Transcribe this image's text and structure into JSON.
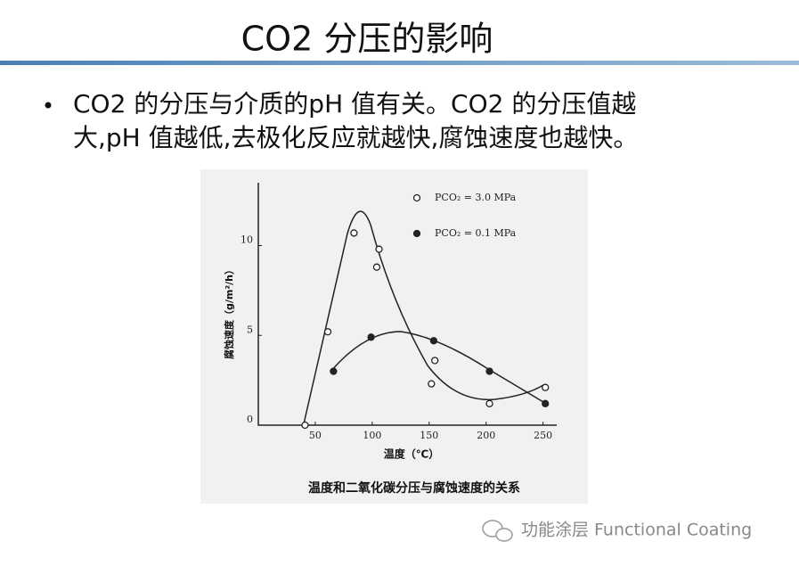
{
  "title": "CO2 分压的影响",
  "bullet": {
    "line1": "CO2 的分压与介质的pH 值有关。CO2 的分压值越",
    "line2": "大,pH 值越低,去极化反应就越快,腐蚀速度也越快。"
  },
  "watermark": "功能涂层 Functional Coating",
  "chart_data": {
    "type": "scatter",
    "caption": "温度和二氧化碳分压与腐蚀速度的关系",
    "x_label": "温度（℃）",
    "y_label": "腐蚀速度（g/m²/h）",
    "xlim": [
      0,
      262
    ],
    "ylim": [
      0,
      13.5
    ],
    "xticks": [
      50,
      100,
      150,
      200,
      250
    ],
    "yticks": [
      0,
      5,
      10
    ],
    "series": [
      {
        "name": "PCO₂ = 3.0 MPa",
        "color": "#222222",
        "marker": "open",
        "x": [
          41,
          61,
          84,
          104,
          106,
          152,
          155,
          203,
          252
        ],
        "values": [
          0,
          5.2,
          10.7,
          8.8,
          9.8,
          2.3,
          3.6,
          1.2,
          2.1
        ]
      },
      {
        "name": "PCO₂ = 0.1 MPa",
        "color": "#222222",
        "marker": "filled",
        "x": [
          66,
          99,
          154,
          203,
          252
        ],
        "values": [
          3.0,
          4.9,
          4.7,
          3.0,
          1.2
        ]
      }
    ]
  }
}
